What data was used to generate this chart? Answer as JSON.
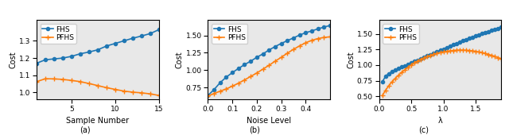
{
  "fhs_color": "#1f77b4",
  "pfhs_color": "#ff7f0e",
  "marker_fhs": "o",
  "marker_pfhs": "+",
  "markersize_fhs": 3,
  "markersize_pfhs": 4,
  "linewidth": 1.2,
  "panel_a": {
    "xlabel": "Sample Number",
    "ylabel": "Cost",
    "fhs_x": [
      1,
      2,
      3,
      4,
      5,
      6,
      7,
      8,
      9,
      10,
      11,
      12,
      13,
      14,
      15
    ],
    "fhs_y": [
      1.17,
      1.19,
      1.195,
      1.2,
      1.21,
      1.225,
      1.235,
      1.248,
      1.27,
      1.285,
      1.3,
      1.315,
      1.328,
      1.342,
      1.365
    ],
    "pfhs_x": [
      1,
      2,
      3,
      4,
      5,
      6,
      7,
      8,
      9,
      10,
      11,
      12,
      13,
      14,
      15
    ],
    "pfhs_y": [
      1.063,
      1.08,
      1.079,
      1.076,
      1.07,
      1.063,
      1.052,
      1.04,
      1.028,
      1.018,
      1.008,
      1.002,
      0.998,
      0.992,
      0.983
    ],
    "xlim": [
      1,
      15
    ],
    "ylim": [
      0.96,
      1.42
    ],
    "xticks": [
      5,
      10,
      15
    ],
    "yticks": [
      1.0,
      1.1,
      1.2,
      1.3
    ]
  },
  "panel_b": {
    "xlabel": "Noise Level",
    "ylabel": "Cost",
    "fhs_x": [
      0.0,
      0.025,
      0.05,
      0.075,
      0.1,
      0.125,
      0.15,
      0.175,
      0.2,
      0.225,
      0.25,
      0.275,
      0.3,
      0.325,
      0.35,
      0.375,
      0.4,
      0.425,
      0.45,
      0.475,
      0.5
    ],
    "fhs_y": [
      0.635,
      0.72,
      0.82,
      0.9,
      0.965,
      1.025,
      1.08,
      1.13,
      1.185,
      1.235,
      1.29,
      1.34,
      1.385,
      1.425,
      1.465,
      1.505,
      1.54,
      1.565,
      1.595,
      1.62,
      1.645
    ],
    "pfhs_x": [
      0.0,
      0.025,
      0.05,
      0.075,
      0.1,
      0.125,
      0.15,
      0.175,
      0.2,
      0.225,
      0.25,
      0.275,
      0.3,
      0.325,
      0.35,
      0.375,
      0.4,
      0.425,
      0.45,
      0.475,
      0.5
    ],
    "pfhs_y": [
      0.625,
      0.665,
      0.698,
      0.73,
      0.77,
      0.813,
      0.86,
      0.91,
      0.96,
      1.015,
      1.07,
      1.13,
      1.185,
      1.245,
      1.3,
      1.35,
      1.395,
      1.43,
      1.455,
      1.472,
      1.48
    ],
    "xlim": [
      0.0,
      0.5
    ],
    "ylim": [
      0.58,
      1.72
    ],
    "xticks": [
      0.0,
      0.1,
      0.2,
      0.3,
      0.4
    ],
    "yticks": [
      0.75,
      1.0,
      1.25,
      1.5
    ]
  },
  "panel_c": {
    "xlabel": "λ",
    "ylabel": "Cost",
    "fhs_x": [
      0.05,
      0.1,
      0.15,
      0.2,
      0.25,
      0.3,
      0.35,
      0.4,
      0.45,
      0.5,
      0.55,
      0.6,
      0.65,
      0.7,
      0.75,
      0.8,
      0.85,
      0.9,
      0.95,
      1.0,
      1.05,
      1.1,
      1.15,
      1.2,
      1.25,
      1.3,
      1.35,
      1.4,
      1.45,
      1.5,
      1.55,
      1.6,
      1.65,
      1.7,
      1.75,
      1.8,
      1.85,
      1.9
    ],
    "fhs_y": [
      0.73,
      0.82,
      0.865,
      0.895,
      0.92,
      0.945,
      0.968,
      0.99,
      1.012,
      1.035,
      1.058,
      1.08,
      1.102,
      1.125,
      1.147,
      1.17,
      1.192,
      1.215,
      1.237,
      1.26,
      1.282,
      1.305,
      1.325,
      1.347,
      1.368,
      1.39,
      1.41,
      1.43,
      1.45,
      1.468,
      1.487,
      1.505,
      1.522,
      1.54,
      1.557,
      1.573,
      1.59,
      1.605
    ],
    "pfhs_x": [
      0.05,
      0.1,
      0.15,
      0.2,
      0.25,
      0.3,
      0.35,
      0.4,
      0.45,
      0.5,
      0.55,
      0.6,
      0.65,
      0.7,
      0.75,
      0.8,
      0.85,
      0.9,
      0.95,
      1.0,
      1.05,
      1.1,
      1.15,
      1.2,
      1.25,
      1.3,
      1.35,
      1.4,
      1.45,
      1.5,
      1.55,
      1.6,
      1.65,
      1.7,
      1.75,
      1.8,
      1.85,
      1.9
    ],
    "pfhs_y": [
      0.51,
      0.595,
      0.668,
      0.73,
      0.785,
      0.835,
      0.882,
      0.925,
      0.965,
      1.002,
      1.035,
      1.065,
      1.092,
      1.115,
      1.137,
      1.155,
      1.172,
      1.187,
      1.2,
      1.211,
      1.221,
      1.228,
      1.234,
      1.238,
      1.24,
      1.24,
      1.238,
      1.234,
      1.228,
      1.22,
      1.21,
      1.198,
      1.185,
      1.17,
      1.155,
      1.138,
      1.12,
      1.1
    ],
    "xlim": [
      0.0,
      1.9
    ],
    "ylim": [
      0.45,
      1.72
    ],
    "xticks": [
      0.0,
      0.5,
      1.0,
      1.5
    ],
    "yticks": [
      0.5,
      0.75,
      1.0,
      1.25,
      1.5
    ]
  },
  "bg_color": "#e8e8e8",
  "legend_fontsize": 6.5,
  "axis_fontsize": 7,
  "tick_fontsize": 6.5,
  "label_fontsize": 7
}
